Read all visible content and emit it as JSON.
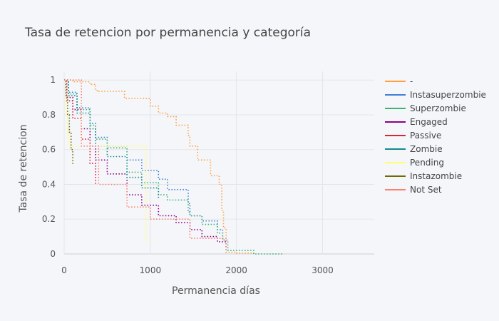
{
  "chart_data": {
    "type": "line",
    "title": "Tasa de retencion por permanencia y categoría",
    "xlabel": "Permanencia días",
    "ylabel": "Tasa de retencion",
    "xlim": [
      0,
      3600
    ],
    "ylim": [
      0,
      1.05
    ],
    "xticks": [
      0,
      1000,
      2000,
      3000
    ],
    "xtick_labels": [
      "0",
      "1000",
      "2000",
      "3000"
    ],
    "yticks": [
      0,
      0.2,
      0.4,
      0.6,
      0.8,
      1
    ],
    "ytick_labels": [
      "0",
      "0.2",
      "0.4",
      "0.6",
      "0.8",
      "1"
    ],
    "grid": true,
    "legend_position": "right",
    "series": [
      {
        "name": "-",
        "color": "#ff9f40",
        "x": [
          0,
          100,
          300,
          365,
          400,
          700,
          1000,
          1095,
          1200,
          1300,
          1440,
          1460,
          1550,
          1700,
          1800,
          1830,
          1850,
          1880,
          2000,
          2200
        ],
        "y": [
          1.0,
          0.99,
          0.975,
          0.94,
          0.935,
          0.895,
          0.85,
          0.81,
          0.79,
          0.74,
          0.68,
          0.62,
          0.54,
          0.45,
          0.4,
          0.25,
          0.15,
          0.01,
          0.005,
          0.0
        ]
      },
      {
        "name": "Instasuperzombie",
        "color": "#3f7fd6",
        "x": [
          0,
          50,
          150,
          300,
          365,
          500,
          730,
          900,
          1095,
          1200,
          1440,
          1460,
          1600,
          1780,
          1840,
          1880
        ],
        "y": [
          1.0,
          0.93,
          0.84,
          0.75,
          0.67,
          0.62,
          0.54,
          0.48,
          0.43,
          0.37,
          0.29,
          0.22,
          0.19,
          0.14,
          0.08,
          0.02
        ]
      },
      {
        "name": "Superzombie",
        "color": "#3cb371",
        "x": [
          0,
          50,
          150,
          300,
          365,
          500,
          730,
          900,
          1095,
          1200,
          1440,
          1460,
          1600,
          1780,
          1840,
          1900,
          2200,
          2540
        ],
        "y": [
          1.0,
          0.92,
          0.83,
          0.74,
          0.66,
          0.61,
          0.47,
          0.41,
          0.34,
          0.31,
          0.24,
          0.22,
          0.17,
          0.12,
          0.08,
          0.02,
          0.0,
          0.0
        ]
      },
      {
        "name": "Engaged",
        "color": "#8b008b",
        "x": [
          0,
          30,
          100,
          200,
          300,
          365,
          500,
          730,
          900,
          1095,
          1300,
          1460,
          1600,
          1780,
          1880
        ],
        "y": [
          1.0,
          0.9,
          0.83,
          0.72,
          0.62,
          0.54,
          0.46,
          0.34,
          0.28,
          0.22,
          0.18,
          0.14,
          0.1,
          0.07,
          0.03
        ]
      },
      {
        "name": "Passive",
        "color": "#d62739",
        "x": [
          0,
          30,
          100,
          200,
          300,
          365
        ],
        "y": [
          1.0,
          0.88,
          0.78,
          0.66,
          0.52,
          0.4
        ]
      },
      {
        "name": "Zombie",
        "color": "#138a8a",
        "x": [
          0,
          50,
          150,
          300,
          365,
          500,
          730,
          900,
          1095
        ],
        "y": [
          1.0,
          0.91,
          0.81,
          0.72,
          0.62,
          0.56,
          0.44,
          0.38,
          0.32
        ]
      },
      {
        "name": "Pending",
        "color": "#ffff66",
        "x": [
          0,
          20,
          40,
          60,
          950,
          1000
        ],
        "y": [
          1.0,
          0.8,
          0.68,
          0.62,
          0.08,
          0.07
        ]
      },
      {
        "name": "Instazombie",
        "color": "#6b6b00",
        "x": [
          0,
          20,
          40,
          60,
          80,
          100
        ],
        "y": [
          1.0,
          0.91,
          0.8,
          0.7,
          0.6,
          0.51
        ]
      },
      {
        "name": "Not Set",
        "color": "#fa8072",
        "x": [
          0,
          200,
          400,
          730,
          1000,
          1460,
          1880
        ],
        "y": [
          1.0,
          0.62,
          0.4,
          0.27,
          0.2,
          0.09,
          0.01
        ]
      }
    ]
  }
}
